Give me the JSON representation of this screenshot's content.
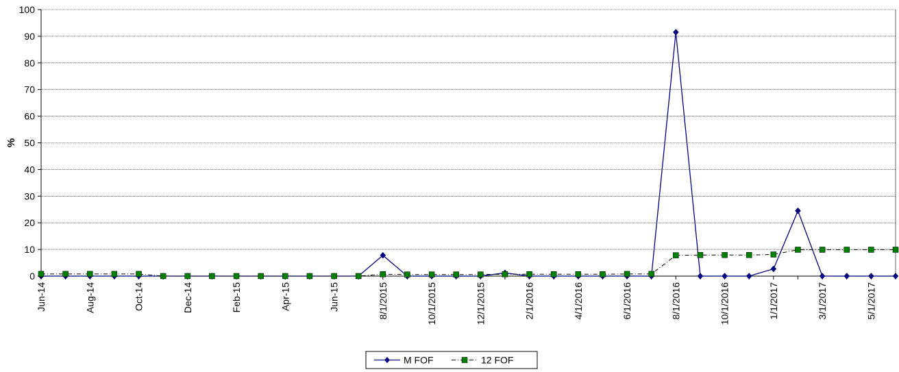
{
  "chart_data": {
    "type": "line",
    "title": "",
    "xlabel": "",
    "ylabel": "%",
    "ylim": [
      0,
      100
    ],
    "yticks": [
      0,
      10,
      20,
      30,
      40,
      50,
      60,
      70,
      80,
      90,
      100
    ],
    "grid": "horizontal",
    "legend_position": "bottom",
    "categories": [
      "Jun-14",
      "Jul-14",
      "Aug-14",
      "Sep-14",
      "Oct-14",
      "Nov-14",
      "Dec-14",
      "Jan-15",
      "Feb-15",
      "Mar-15",
      "Apr-15",
      "May-15",
      "Jun-15",
      "Jul-15",
      "8/1/2015",
      "9/1/2015",
      "10/1/2015",
      "11/1/2015",
      "12/1/2015",
      "1/1/2016",
      "2/1/2016",
      "3/1/2016",
      "4/1/2016",
      "5/1/2016",
      "6/1/2016",
      "7/1/2016",
      "8/1/2016",
      "9/1/2016",
      "10/1/2016",
      "11/1/2016",
      "1/1/2017",
      "2/1/2017",
      "3/1/2017",
      "4/1/2017",
      "5/1/2017",
      "6/1/2017"
    ],
    "x_tick_labels": [
      "Jun-14",
      "",
      "Aug-14",
      "",
      "Oct-14",
      "",
      "Dec-14",
      "",
      "Feb-15",
      "",
      "Apr-15",
      "",
      "Jun-15",
      "",
      "8/1/2015",
      "",
      "10/1/2015",
      "",
      "12/1/2015",
      "",
      "2/1/2016",
      "",
      "4/1/2016",
      "",
      "6/1/2016",
      "",
      "8/1/2016",
      "",
      "10/1/2016",
      "",
      "1/1/2017",
      "",
      "3/1/2017",
      "",
      "5/1/2017",
      ""
    ],
    "series": [
      {
        "name": "M FOF",
        "color": "#000080",
        "marker": "diamond",
        "line_style": "solid",
        "values": [
          0,
          0,
          0,
          0,
          0,
          0,
          0,
          0,
          0,
          0,
          0,
          0,
          0,
          0,
          7.8,
          0,
          0,
          0,
          0,
          1.2,
          0,
          0,
          0,
          0,
          0,
          0,
          91.5,
          0,
          0,
          0,
          2.7,
          24.5,
          0,
          0,
          0,
          0
        ]
      },
      {
        "name": "12 FOF",
        "color": "#008000",
        "marker": "square",
        "line_style": "dash-dot",
        "values": [
          0.8,
          0.8,
          0.8,
          0.8,
          0.8,
          0,
          0,
          0,
          0,
          0,
          0,
          0,
          0,
          0,
          0.7,
          0.6,
          0.6,
          0.6,
          0.6,
          0.7,
          0.7,
          0.7,
          0.7,
          0.7,
          0.8,
          0.8,
          7.8,
          7.9,
          7.9,
          7.9,
          8.1,
          9.9,
          9.9,
          9.9,
          9.9,
          9.9
        ]
      }
    ]
  }
}
